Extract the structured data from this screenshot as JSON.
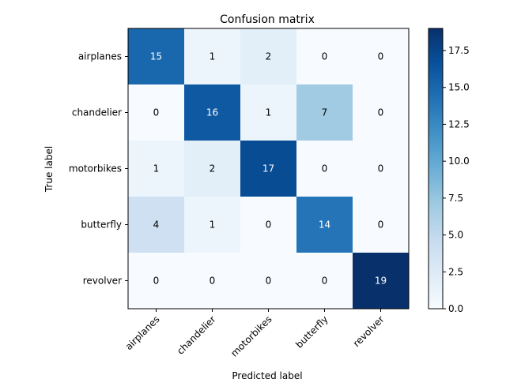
{
  "chart_data": {
    "type": "heatmap",
    "title": "Confusion matrix",
    "xlabel": "Predicted label",
    "ylabel": "True label",
    "x_categories": [
      "airplanes",
      "chandelier",
      "motorbikes",
      "butterfly",
      "revolver"
    ],
    "y_categories": [
      "airplanes",
      "chandelier",
      "motorbikes",
      "butterfly",
      "revolver"
    ],
    "values": [
      [
        15,
        1,
        2,
        0,
        0
      ],
      [
        0,
        16,
        1,
        7,
        0
      ],
      [
        1,
        2,
        17,
        0,
        0
      ],
      [
        4,
        1,
        0,
        14,
        0
      ],
      [
        0,
        0,
        0,
        0,
        19
      ]
    ],
    "colorbar": {
      "min": 0,
      "max": 19,
      "ticks": [
        0.0,
        2.5,
        5.0,
        7.5,
        10.0,
        12.5,
        15.0,
        17.5
      ],
      "tick_labels": [
        "0.0",
        "2.5",
        "5.0",
        "7.5",
        "10.0",
        "12.5",
        "15.0",
        "17.5"
      ],
      "colormap": "Blues"
    },
    "grid": false,
    "colors": {
      "low": "#f7fbff",
      "high": "#08306b",
      "text_dark": "#000000",
      "text_light": "#ffffff"
    }
  }
}
